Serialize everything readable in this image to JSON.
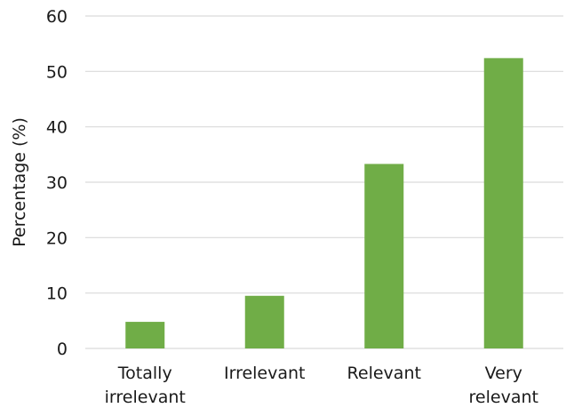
{
  "chart_data": {
    "type": "bar",
    "categories": [
      [
        "Totally",
        "irrelevant"
      ],
      [
        "Irrelevant"
      ],
      [
        "Relevant"
      ],
      [
        "Very",
        "relevant"
      ]
    ],
    "values": [
      4.8,
      9.5,
      33.3,
      52.4
    ],
    "ylabel": "Percentage (%)",
    "xlabel": "",
    "ylim": [
      0,
      60
    ],
    "yticks": [
      0,
      10,
      20,
      30,
      40,
      50,
      60
    ],
    "bar_color": "#70ad47",
    "grid": true
  }
}
